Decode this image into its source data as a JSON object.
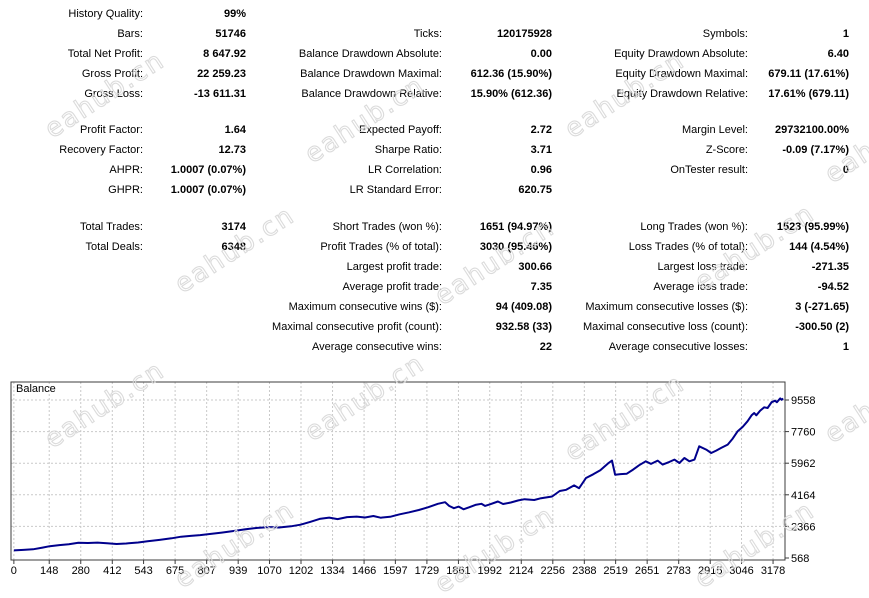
{
  "report": {
    "blocks": [
      {
        "rows": [
          [
            "History Quality:",
            "99%",
            "",
            "",
            "",
            ""
          ],
          [
            "Bars:",
            "51746",
            "Ticks:",
            "120175928",
            "Symbols:",
            "1"
          ],
          [
            "Total Net Profit:",
            "8 647.92",
            "Balance Drawdown Absolute:",
            "0.00",
            "Equity Drawdown Absolute:",
            "6.40"
          ],
          [
            "Gross Profit:",
            "22 259.23",
            "Balance Drawdown Maximal:",
            "612.36 (15.90%)",
            "Equity Drawdown Maximal:",
            "679.11 (17.61%)"
          ],
          [
            "Gross Loss:",
            "-13 611.31",
            "Balance Drawdown Relative:",
            "15.90% (612.36)",
            "Equity Drawdown Relative:",
            "17.61% (679.11)"
          ]
        ]
      },
      {
        "rows": [
          [
            "Profit Factor:",
            "1.64",
            "Expected Payoff:",
            "2.72",
            "Margin Level:",
            "29732100.00%"
          ],
          [
            "Recovery Factor:",
            "12.73",
            "Sharpe Ratio:",
            "3.71",
            "Z-Score:",
            "-0.09 (7.17%)"
          ],
          [
            "AHPR:",
            "1.0007 (0.07%)",
            "LR Correlation:",
            "0.96",
            "OnTester result:",
            "0"
          ],
          [
            "GHPR:",
            "1.0007 (0.07%)",
            "LR Standard Error:",
            "620.75",
            "",
            ""
          ]
        ]
      },
      {
        "rows": [
          [
            "Total Trades:",
            "3174",
            "Short Trades (won %):",
            "1651 (94.97%)",
            "Long Trades (won %):",
            "1523 (95.99%)"
          ],
          [
            "Total Deals:",
            "6348",
            "Profit Trades (% of total):",
            "3030 (95.46%)",
            "Loss Trades (% of total):",
            "144 (4.54%)"
          ],
          [
            "",
            "",
            "Largest profit trade:",
            "300.66",
            "Largest loss trade:",
            "-271.35"
          ],
          [
            "",
            "",
            "Average profit trade:",
            "7.35",
            "Average loss trade:",
            "-94.52"
          ],
          [
            "",
            "",
            "Maximum consecutive wins ($):",
            "94 (409.08)",
            "Maximum consecutive losses ($):",
            "3 (-271.65)"
          ],
          [
            "",
            "",
            "Maximal consecutive profit (count):",
            "932.58 (33)",
            "Maximal consecutive loss (count):",
            "-300.50 (2)"
          ],
          [
            "",
            "",
            "Average consecutive wins:",
            "22",
            "Average consecutive losses:",
            "1"
          ]
        ]
      }
    ]
  },
  "chart_data": {
    "type": "line",
    "title": "Balance",
    "xlabel": "",
    "ylabel": "",
    "xlim": [
      -12,
      3228
    ],
    "ylim": [
      454,
      10582
    ],
    "x_ticks": [
      0,
      148,
      280,
      412,
      543,
      675,
      807,
      939,
      1070,
      1202,
      1334,
      1466,
      1597,
      1729,
      1861,
      1992,
      2124,
      2256,
      2388,
      2519,
      2651,
      2783,
      2915,
      3046,
      3178
    ],
    "y_ticks": [
      568,
      2366,
      4164,
      5962,
      7760,
      9558
    ],
    "grid": "dashed",
    "legend_position": "none",
    "series": [
      {
        "name": "Balance",
        "color": "#00008c",
        "points": [
          [
            0,
            1000
          ],
          [
            40,
            1030
          ],
          [
            80,
            1065
          ],
          [
            120,
            1160
          ],
          [
            150,
            1240
          ],
          [
            190,
            1300
          ],
          [
            230,
            1350
          ],
          [
            270,
            1430
          ],
          [
            310,
            1420
          ],
          [
            350,
            1445
          ],
          [
            390,
            1410
          ],
          [
            430,
            1365
          ],
          [
            470,
            1390
          ],
          [
            520,
            1450
          ],
          [
            560,
            1520
          ],
          [
            610,
            1600
          ],
          [
            660,
            1690
          ],
          [
            700,
            1780
          ],
          [
            740,
            1825
          ],
          [
            780,
            1870
          ],
          [
            820,
            1935
          ],
          [
            870,
            2015
          ],
          [
            920,
            2105
          ],
          [
            970,
            2205
          ],
          [
            1020,
            2280
          ],
          [
            1070,
            2325
          ],
          [
            1110,
            2305
          ],
          [
            1160,
            2370
          ],
          [
            1200,
            2460
          ],
          [
            1240,
            2620
          ],
          [
            1280,
            2790
          ],
          [
            1320,
            2865
          ],
          [
            1355,
            2780
          ],
          [
            1395,
            2895
          ],
          [
            1435,
            2925
          ],
          [
            1470,
            2870
          ],
          [
            1505,
            2960
          ],
          [
            1535,
            2862
          ],
          [
            1575,
            2912
          ],
          [
            1615,
            3055
          ],
          [
            1655,
            3170
          ],
          [
            1695,
            3300
          ],
          [
            1735,
            3460
          ],
          [
            1775,
            3650
          ],
          [
            1805,
            3740
          ],
          [
            1822,
            3530
          ],
          [
            1842,
            3400
          ],
          [
            1862,
            3490
          ],
          [
            1882,
            3340
          ],
          [
            1907,
            3460
          ],
          [
            1932,
            3590
          ],
          [
            1957,
            3650
          ],
          [
            1972,
            3530
          ],
          [
            1995,
            3630
          ],
          [
            2026,
            3780
          ],
          [
            2048,
            3640
          ],
          [
            2080,
            3725
          ],
          [
            2112,
            3845
          ],
          [
            2138,
            3912
          ],
          [
            2178,
            3870
          ],
          [
            2207,
            3970
          ],
          [
            2253,
            4065
          ],
          [
            2285,
            4380
          ],
          [
            2312,
            4450
          ],
          [
            2345,
            4700
          ],
          [
            2366,
            4540
          ],
          [
            2395,
            5120
          ],
          [
            2425,
            5330
          ],
          [
            2455,
            5560
          ],
          [
            2490,
            5980
          ],
          [
            2504,
            6110
          ],
          [
            2517,
            5310
          ],
          [
            2540,
            5340
          ],
          [
            2565,
            5360
          ],
          [
            2592,
            5600
          ],
          [
            2617,
            5845
          ],
          [
            2645,
            6070
          ],
          [
            2667,
            5920
          ],
          [
            2695,
            6110
          ],
          [
            2716,
            5880
          ],
          [
            2744,
            6035
          ],
          [
            2765,
            6165
          ],
          [
            2786,
            5975
          ],
          [
            2807,
            6260
          ],
          [
            2828,
            6070
          ],
          [
            2849,
            6165
          ],
          [
            2869,
            6925
          ],
          [
            2898,
            6735
          ],
          [
            2919,
            6545
          ],
          [
            2940,
            6680
          ],
          [
            2961,
            6830
          ],
          [
            2988,
            7020
          ],
          [
            3009,
            7360
          ],
          [
            3030,
            7780
          ],
          [
            3051,
            8025
          ],
          [
            3071,
            8345
          ],
          [
            3088,
            8690
          ],
          [
            3099,
            8820
          ],
          [
            3108,
            8690
          ],
          [
            3124,
            8955
          ],
          [
            3141,
            9140
          ],
          [
            3155,
            9105
          ],
          [
            3172,
            9430
          ],
          [
            3186,
            9520
          ],
          [
            3194,
            9430
          ],
          [
            3208,
            9650
          ],
          [
            3214,
            9570
          ],
          [
            3220,
            9648
          ]
        ]
      }
    ]
  },
  "watermark": {
    "text": "eahub.cn"
  },
  "colors": {
    "line": "#00008c",
    "grid": "#c9c9c9",
    "border": "#3c3c3c",
    "watermark": "#d8d8d8"
  }
}
